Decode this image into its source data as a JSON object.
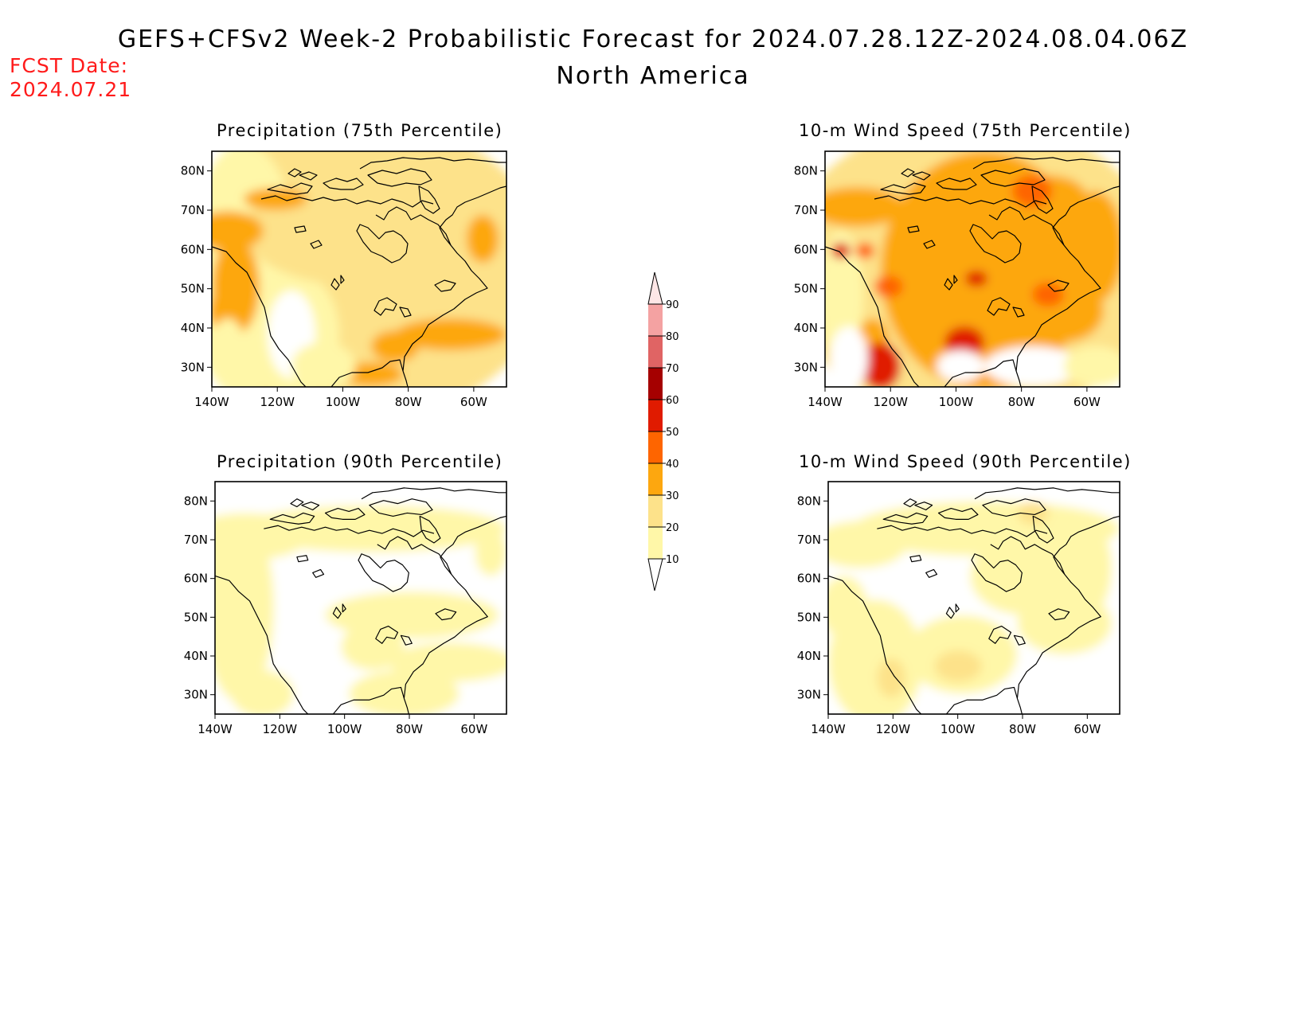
{
  "header": {
    "title_line1": "GEFS+CFSv2 Week-2 Probabilistic Forecast for 2024.07.28.12Z-2024.08.04.06Z",
    "title_line2": "North America",
    "fcst_label": "FCST Date:",
    "fcst_date": "2024.07.21"
  },
  "panels": [
    {
      "id": "precip75",
      "title": "Precipitation (75th Percentile)"
    },
    {
      "id": "wind75",
      "title": "10-m Wind Speed (75th Percentile)"
    },
    {
      "id": "precip90",
      "title": "Precipitation (90th Percentile)"
    },
    {
      "id": "wind90",
      "title": "10-m Wind Speed (90th Percentile)"
    }
  ],
  "axes": {
    "lon_ticks": [
      "140W",
      "120W",
      "100W",
      "80W",
      "60W"
    ],
    "lat_ticks": [
      "80N",
      "70N",
      "60N",
      "50N",
      "40N",
      "30N"
    ],
    "lon_range": [
      -140,
      -50
    ],
    "lat_range": [
      25,
      85
    ]
  },
  "colorbar": {
    "levels": [
      "10",
      "20",
      "30",
      "40",
      "50",
      "60",
      "70",
      "80",
      "90"
    ],
    "colors": [
      "#fff7a8",
      "#fde28a",
      "#fda70f",
      "#fe6500",
      "#e01b00",
      "#a50000",
      "#e06464",
      "#f4a2a2",
      "#fde6e6"
    ]
  }
}
